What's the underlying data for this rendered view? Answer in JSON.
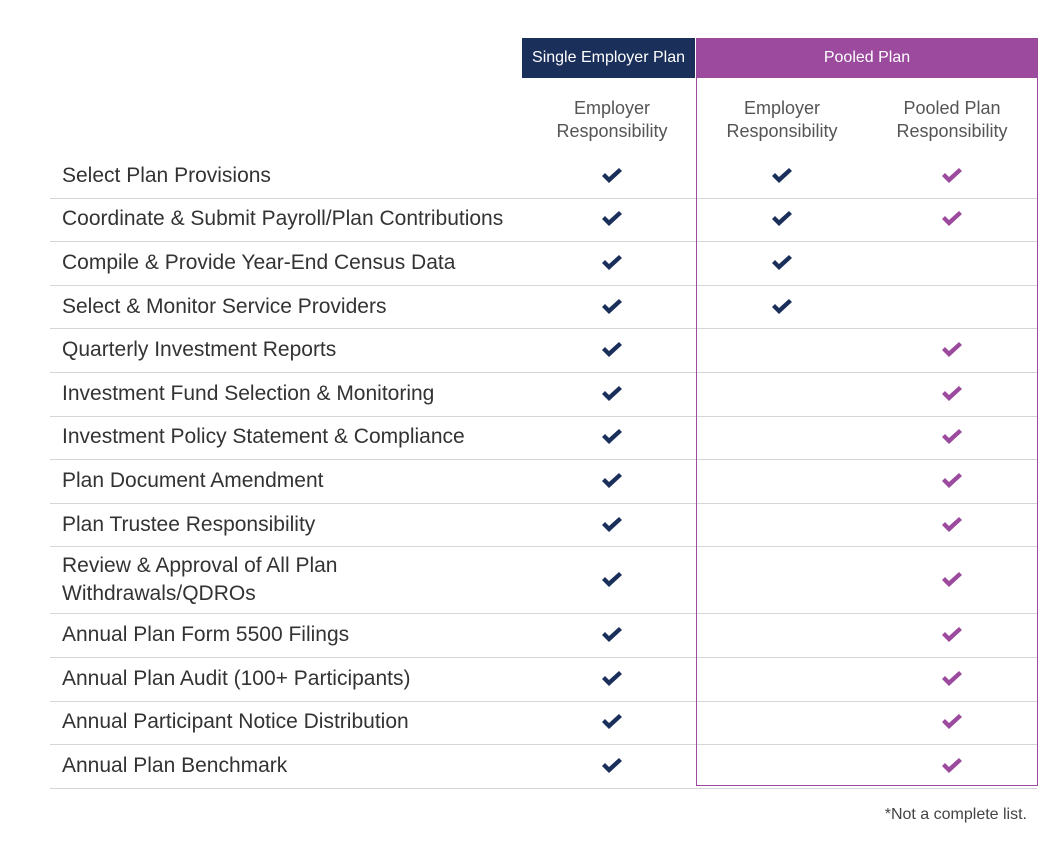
{
  "header": {
    "groups": [
      "Single Employer Plan",
      "Pooled Plan"
    ],
    "columns": [
      [
        "Employer",
        "Responsibility"
      ],
      [
        "Employer",
        "Responsibility"
      ],
      [
        "Pooled Plan",
        "Responsibility"
      ]
    ]
  },
  "table": {
    "rows": [
      {
        "label": [
          "Select Plan Provisions"
        ],
        "checks": [
          true,
          true,
          true
        ]
      },
      {
        "label": [
          "Coordinate & Submit Payroll/Plan Contributions"
        ],
        "checks": [
          true,
          true,
          true
        ]
      },
      {
        "label": [
          "Compile & Provide Year-End Census Data"
        ],
        "checks": [
          true,
          true,
          false
        ]
      },
      {
        "label": [
          "Select & Monitor Service Providers"
        ],
        "checks": [
          true,
          true,
          false
        ]
      },
      {
        "label": [
          "Quarterly Investment Reports"
        ],
        "checks": [
          true,
          false,
          true
        ]
      },
      {
        "label": [
          "Investment Fund Selection & Monitoring"
        ],
        "checks": [
          true,
          false,
          true
        ]
      },
      {
        "label": [
          "Investment Policy Statement & Compliance"
        ],
        "checks": [
          true,
          false,
          true
        ]
      },
      {
        "label": [
          "Plan Document Amendment"
        ],
        "checks": [
          true,
          false,
          true
        ]
      },
      {
        "label": [
          "Plan Trustee Responsibility"
        ],
        "checks": [
          true,
          false,
          true
        ]
      },
      {
        "label": [
          "Review & Approval of All Plan",
          "Withdrawals/QDROs"
        ],
        "checks": [
          true,
          false,
          true
        ]
      },
      {
        "label": [
          "Annual Plan Form 5500 Filings"
        ],
        "checks": [
          true,
          false,
          true
        ]
      },
      {
        "label": [
          "Annual Plan Audit (100+ Participants)"
        ],
        "checks": [
          true,
          false,
          true
        ]
      },
      {
        "label": [
          "Annual Participant Notice Distribution"
        ],
        "checks": [
          true,
          false,
          true
        ]
      },
      {
        "label": [
          "Annual Plan Benchmark"
        ],
        "checks": [
          true,
          false,
          true
        ]
      }
    ]
  },
  "footnote": "*Not a complete list."
}
